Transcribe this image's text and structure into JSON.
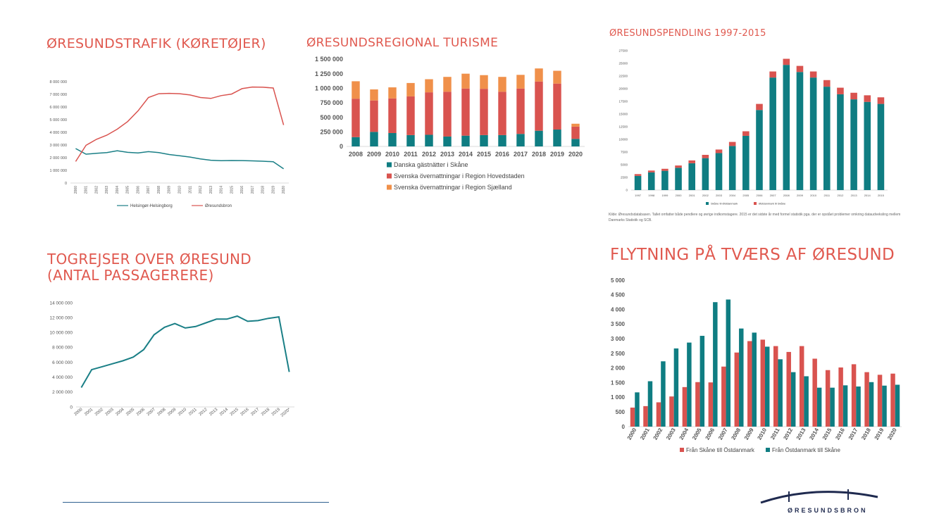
{
  "charts": [
    {
      "type": "line",
      "title": "ØRESUNDSTRAFIK (KØRETØJER)",
      "categories": [
        "2000",
        "2001",
        "2002",
        "2003",
        "2004",
        "2005",
        "2006",
        "2007",
        "2008",
        "2009",
        "2010",
        "2011",
        "2012",
        "2013",
        "2014",
        "2015",
        "2016",
        "2017",
        "2018",
        "2019",
        "2020"
      ],
      "y_ticks": [
        "0",
        "1 000 000",
        "2 000 000",
        "3 000 000",
        "4 000 000",
        "5 000 000",
        "6 000 000",
        "7 000 000",
        "8 000 000"
      ],
      "ylim": [
        0,
        8000000
      ],
      "series": [
        {
          "name": "Helsingør-Helsingborg",
          "color": "#1a7f86",
          "values": [
            2720000,
            2280000,
            2350000,
            2400000,
            2550000,
            2420000,
            2380000,
            2480000,
            2400000,
            2250000,
            2150000,
            2050000,
            1900000,
            1800000,
            1760000,
            1780000,
            1770000,
            1750000,
            1720000,
            1680000,
            1120000
          ]
        },
        {
          "name": "Øresundsbron",
          "color": "#d9534f",
          "values": [
            1700000,
            2980000,
            3450000,
            3780000,
            4250000,
            4850000,
            5700000,
            6750000,
            7050000,
            7080000,
            7050000,
            6950000,
            6750000,
            6680000,
            6900000,
            7020000,
            7450000,
            7580000,
            7560000,
            7500000,
            4580000
          ]
        }
      ]
    },
    {
      "type": "bar",
      "stacked": true,
      "title": "ØRESUNDSREGIONAL TURISME",
      "categories": [
        "2008",
        "2009",
        "2010",
        "2011",
        "2012",
        "2013",
        "2014",
        "2015",
        "2016",
        "2017",
        "2018",
        "2019",
        "2020"
      ],
      "y_ticks": [
        "0",
        "250 000",
        "500 000",
        "750 000",
        "1 000 000",
        "1 250 000",
        "1 500 000"
      ],
      "ylim": [
        0,
        1500000
      ],
      "series": [
        {
          "name": "Danska gästnätter i Skåne",
          "color": "#0f7d82",
          "values": [
            160000,
            250000,
            230000,
            195000,
            200000,
            170000,
            185000,
            195000,
            195000,
            215000,
            270000,
            290000,
            130000
          ]
        },
        {
          "name": "Svenska övernattningar i Region Hovedstaden",
          "color": "#d9534f",
          "values": [
            660000,
            540000,
            595000,
            665000,
            730000,
            770000,
            810000,
            795000,
            745000,
            780000,
            845000,
            790000,
            210000
          ]
        },
        {
          "name": "Svenska övernattningar i Region Sjælland",
          "color": "#f0904a",
          "values": [
            300000,
            190000,
            190000,
            230000,
            225000,
            255000,
            255000,
            235000,
            255000,
            235000,
            225000,
            220000,
            50000
          ]
        }
      ]
    },
    {
      "type": "bar",
      "stacked": true,
      "title": "ØRESUNDSPENDLING 1997-2015",
      "categories": [
        "1997",
        "1998",
        "1999",
        "2000",
        "2001",
        "2002",
        "2003",
        "2004",
        "2005",
        "2006",
        "2007",
        "2008",
        "2009",
        "2010",
        "2011",
        "2012",
        "2013",
        "2014",
        "2015"
      ],
      "y_ticks": [
        "0",
        "2500",
        "5000",
        "7500",
        "10000",
        "12500",
        "15000",
        "17500",
        "20000",
        "22500",
        "25000",
        "27500"
      ],
      "ylim": [
        0,
        27500
      ],
      "series": [
        {
          "name": "Skåne til Østdanmark",
          "color": "#0f7d82",
          "values": [
            2800,
            3500,
            3800,
            4400,
            5300,
            6300,
            7300,
            8700,
            10700,
            15800,
            22200,
            24700,
            23300,
            22200,
            20400,
            18900,
            17900,
            17400,
            17000
          ]
        },
        {
          "name": "Østdanmark til Skåne",
          "color": "#d9534f",
          "values": [
            350,
            350,
            400,
            450,
            550,
            650,
            700,
            800,
            900,
            1200,
            1200,
            1200,
            1200,
            1200,
            1300,
            1300,
            1300,
            1300,
            1300
          ]
        }
      ],
      "note": "Kilde: Øresundsdatabasen. Tallet omfatter både pendlere og øvrige indkomstagere. 2015 er det sidste år med formel statistik pga. der er opstået problemer omkring dataudveksling mellem Danmarks Statistik og SCB."
    },
    {
      "type": "line",
      "title": "TOGREJSER OVER ØRESUND\n(ANTAL PASSAGERERE)",
      "categories": [
        "2000",
        "2001",
        "2002",
        "2003",
        "2004",
        "2005",
        "2006",
        "2007",
        "2008",
        "2009",
        "2010",
        "2011",
        "2012",
        "2013",
        "2014",
        "2015",
        "2016",
        "2017",
        "2018",
        "2019",
        "2020*"
      ],
      "y_ticks": [
        "0",
        "2 000 000",
        "4 000 000",
        "6 000 000",
        "8 000 000",
        "10 000 000",
        "12 000 000",
        "14 000 000"
      ],
      "ylim": [
        0,
        14000000
      ],
      "series": [
        {
          "name": "Togrejser",
          "color": "#1a7f86",
          "values": [
            2600000,
            5000000,
            5400000,
            5800000,
            6200000,
            6700000,
            7700000,
            9700000,
            10700000,
            11200000,
            10600000,
            10800000,
            11300000,
            11800000,
            11800000,
            12200000,
            11500000,
            11600000,
            11900000,
            12100000,
            4700000
          ]
        }
      ]
    },
    {
      "type": "bar",
      "stacked": false,
      "title": "FLYTNING PÅ TVÆRS AF ØRESUND",
      "categories": [
        "2000",
        "2001",
        "2002",
        "2003",
        "2004",
        "2005",
        "2006",
        "2007",
        "2008",
        "2009",
        "2010",
        "2011",
        "2012",
        "2013",
        "2014",
        "2015",
        "2016",
        "2017",
        "2018",
        "2019",
        "2020"
      ],
      "y_ticks": [
        "0",
        "500",
        "1 000",
        "1 500",
        "2 000",
        "2 500",
        "3 000",
        "3 500",
        "4 000",
        "4 500",
        "5 000"
      ],
      "ylim": [
        0,
        5000
      ],
      "series": [
        {
          "name": "Från Skåne till Östdanmark",
          "color": "#d9534f",
          "values": [
            650,
            700,
            830,
            1030,
            1350,
            1520,
            1510,
            2050,
            2530,
            2920,
            2970,
            2750,
            2550,
            2750,
            2320,
            1930,
            2020,
            2130,
            1860,
            1770,
            1810
          ]
        },
        {
          "name": "Från Östdanmark till Skåne",
          "color": "#0f7d82",
          "values": [
            1170,
            1550,
            2230,
            2670,
            2870,
            3100,
            4250,
            4340,
            3350,
            3210,
            2730,
            2300,
            1860,
            1720,
            1330,
            1330,
            1410,
            1370,
            1520,
            1400,
            1430
          ]
        }
      ]
    }
  ],
  "logo": {
    "text": "ØRESUNDSBRON",
    "color": "#1f2a4f"
  }
}
